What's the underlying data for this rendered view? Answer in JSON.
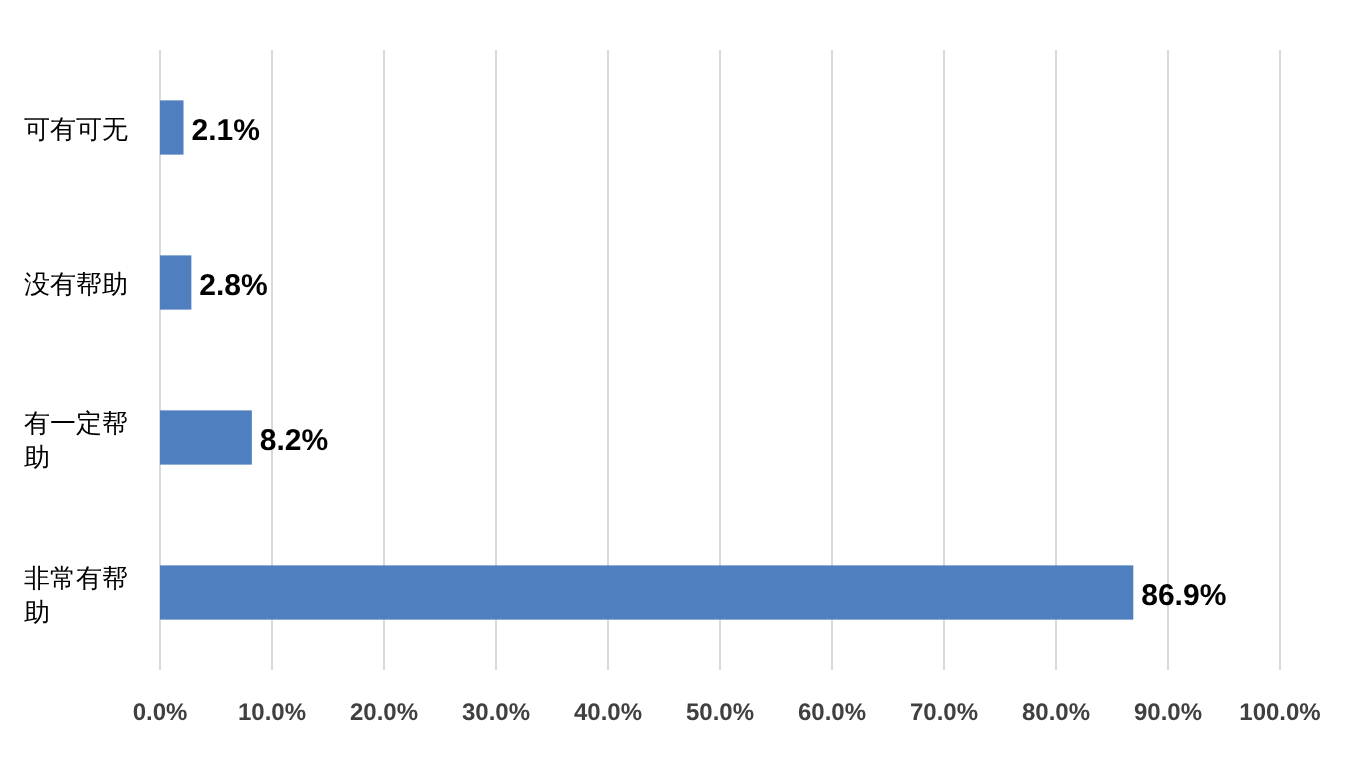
{
  "chart_data": {
    "type": "bar",
    "orientation": "horizontal",
    "categories": [
      "可有可无",
      "没有帮助",
      "有一定帮助",
      "非常有帮助"
    ],
    "values": [
      2.1,
      2.8,
      8.2,
      86.9
    ],
    "value_labels": [
      "2.1%",
      "2.8%",
      "8.2%",
      "86.9%"
    ],
    "color": "#4f7fbf",
    "xlim": [
      0,
      100
    ],
    "xticks": [
      {
        "value": 0,
        "label": "0.0%"
      },
      {
        "value": 10,
        "label": "10.0%"
      },
      {
        "value": 20,
        "label": "20.0%"
      },
      {
        "value": 30,
        "label": "30.0%"
      },
      {
        "value": 40,
        "label": "40.0%"
      },
      {
        "value": 50,
        "label": "50.0%"
      },
      {
        "value": 60,
        "label": "60.0%"
      },
      {
        "value": 70,
        "label": "70.0%"
      },
      {
        "value": 80,
        "label": "80.0%"
      },
      {
        "value": 90,
        "label": "90.0%"
      },
      {
        "value": 100,
        "label": "100.0%"
      }
    ],
    "grid": "x"
  }
}
